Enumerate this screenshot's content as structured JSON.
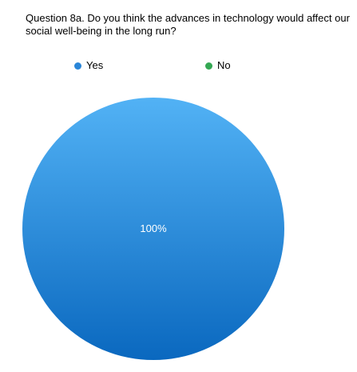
{
  "chart_data": {
    "type": "pie",
    "title": "Question 8a. Do you think the advances in technology would affect our social well-being in the long run?",
    "categories": [
      "Yes",
      "No"
    ],
    "values": [
      100,
      0
    ],
    "labels": [
      "100%",
      ""
    ],
    "colors": [
      "#2a86d8",
      "#34a853"
    ],
    "legend_position": "top"
  }
}
